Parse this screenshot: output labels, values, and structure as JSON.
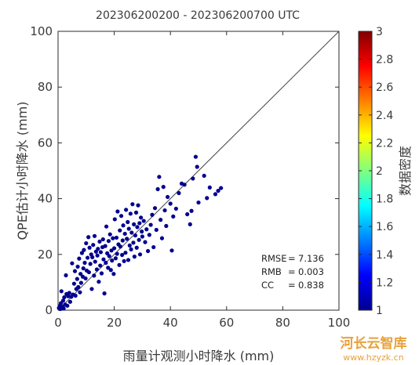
{
  "chart_data": {
    "type": "scatter",
    "title": "202306200200 - 202306200700 UTC",
    "xlabel": "雨量计观测小时降水 (mm)",
    "ylabel": "QPE估计小时降水 (mm)",
    "xlim": [
      0,
      100
    ],
    "ylim": [
      0,
      100
    ],
    "x_ticks": [
      "0",
      "20",
      "40",
      "60",
      "80",
      "100"
    ],
    "y_ticks": [
      "0",
      "20",
      "40",
      "60",
      "80",
      "100"
    ],
    "grid": false,
    "reference_line": "1:1",
    "point_color": "#00008f",
    "stats": [
      {
        "label": "RMSE",
        "value": "7.136"
      },
      {
        "label": "RMB",
        "value": "0.003"
      },
      {
        "label": "CC",
        "value": "0.838"
      }
    ],
    "colorbar": {
      "label": "数据密度",
      "range": [
        1,
        3
      ],
      "ticks": [
        "1",
        "1.2",
        "1.4",
        "1.6",
        "1.8",
        "2",
        "2.2",
        "2.4",
        "2.6",
        "2.8",
        "3"
      ]
    },
    "points": [
      [
        0.3,
        0.8
      ],
      [
        0.6,
        1.5
      ],
      [
        0.8,
        0.4
      ],
      [
        1.0,
        2.5
      ],
      [
        1.2,
        6.8
      ],
      [
        1.5,
        1.2
      ],
      [
        1.8,
        3.4
      ],
      [
        2.0,
        0.6
      ],
      [
        2.2,
        4.6
      ],
      [
        2.5,
        2.0
      ],
      [
        2.8,
        12.5
      ],
      [
        3.0,
        5.8
      ],
      [
        3.3,
        1.6
      ],
      [
        3.6,
        5.0
      ],
      [
        4.0,
        6.2
      ],
      [
        4.3,
        3.0
      ],
      [
        4.7,
        4.8
      ],
      [
        5.0,
        16.8
      ],
      [
        5.3,
        5.6
      ],
      [
        5.7,
        9.5
      ],
      [
        6.0,
        14.0
      ],
      [
        6.2,
        5.2
      ],
      [
        6.5,
        7.6
      ],
      [
        6.8,
        11.2
      ],
      [
        7.0,
        15.6
      ],
      [
        7.2,
        8.3
      ],
      [
        7.5,
        18.5
      ],
      [
        7.8,
        6.4
      ],
      [
        8.0,
        13.0
      ],
      [
        8.2,
        9.8
      ],
      [
        8.5,
        20.5
      ],
      [
        8.8,
        12.0
      ],
      [
        9.0,
        15.0
      ],
      [
        9.2,
        21.6
      ],
      [
        9.5,
        17.0
      ],
      [
        9.8,
        11.4
      ],
      [
        10.0,
        24.0
      ],
      [
        10.2,
        14.2
      ],
      [
        10.5,
        18.8
      ],
      [
        10.8,
        26.2
      ],
      [
        11.0,
        13.6
      ],
      [
        11.2,
        22.4
      ],
      [
        11.5,
        16.6
      ],
      [
        11.8,
        20.0
      ],
      [
        12.0,
        7.6
      ],
      [
        12.2,
        19.0
      ],
      [
        12.5,
        23.4
      ],
      [
        12.8,
        12.4
      ],
      [
        13.0,
        26.6
      ],
      [
        13.2,
        17.4
      ],
      [
        13.5,
        21.0
      ],
      [
        13.8,
        14.6
      ],
      [
        14.0,
        19.6
      ],
      [
        14.2,
        22.0
      ],
      [
        14.5,
        10.2
      ],
      [
        14.8,
        24.6
      ],
      [
        15.0,
        16.0
      ],
      [
        15.2,
        20.8
      ],
      [
        15.5,
        13.2
      ],
      [
        15.8,
        22.6
      ],
      [
        16.0,
        25.4
      ],
      [
        16.2,
        18.2
      ],
      [
        16.5,
        6.0
      ],
      [
        16.8,
        23.0
      ],
      [
        17.0,
        17.0
      ],
      [
        17.2,
        30.0
      ],
      [
        17.5,
        20.4
      ],
      [
        17.8,
        15.2
      ],
      [
        18.0,
        24.8
      ],
      [
        18.2,
        19.4
      ],
      [
        18.5,
        27.2
      ],
      [
        18.8,
        14.4
      ],
      [
        19.0,
        21.4
      ],
      [
        19.2,
        17.8
      ],
      [
        19.5,
        25.8
      ],
      [
        19.8,
        13.0
      ],
      [
        20.0,
        22.2
      ],
      [
        20.2,
        32.6
      ],
      [
        20.5,
        18.6
      ],
      [
        20.8,
        26.0
      ],
      [
        21.0,
        20.2
      ],
      [
        21.2,
        35.4
      ],
      [
        21.5,
        23.6
      ],
      [
        21.8,
        16.2
      ],
      [
        22.0,
        28.6
      ],
      [
        22.2,
        22.8
      ],
      [
        22.5,
        33.8
      ],
      [
        22.8,
        19.8
      ],
      [
        23.0,
        25.0
      ],
      [
        23.2,
        30.4
      ],
      [
        23.5,
        17.6
      ],
      [
        23.8,
        27.4
      ],
      [
        24.0,
        20.6
      ],
      [
        24.2,
        36.0
      ],
      [
        24.5,
        25.6
      ],
      [
        24.8,
        31.6
      ],
      [
        25.0,
        18.0
      ],
      [
        25.2,
        29.2
      ],
      [
        25.5,
        23.2
      ],
      [
        25.8,
        34.6
      ],
      [
        26.0,
        21.8
      ],
      [
        26.2,
        27.8
      ],
      [
        26.5,
        38.0
      ],
      [
        26.8,
        24.2
      ],
      [
        27.0,
        30.8
      ],
      [
        27.2,
        19.2
      ],
      [
        27.5,
        26.8
      ],
      [
        27.8,
        35.0
      ],
      [
        28.0,
        22.4
      ],
      [
        28.2,
        29.8
      ],
      [
        28.5,
        37.6
      ],
      [
        28.8,
        25.2
      ],
      [
        29.0,
        31.2
      ],
      [
        29.2,
        20.0
      ],
      [
        29.5,
        33.2
      ],
      [
        29.8,
        28.2
      ],
      [
        30.0,
        26.4
      ],
      [
        30.5,
        32.0
      ],
      [
        31.0,
        24.4
      ],
      [
        31.5,
        29.0
      ],
      [
        32.0,
        21.2
      ],
      [
        32.5,
        27.0
      ],
      [
        33.0,
        30.6
      ],
      [
        33.5,
        34.2
      ],
      [
        34.0,
        22.6
      ],
      [
        34.5,
        36.6
      ],
      [
        35.0,
        28.8
      ],
      [
        35.5,
        43.4
      ],
      [
        36.0,
        47.8
      ],
      [
        36.5,
        32.4
      ],
      [
        37.0,
        25.8
      ],
      [
        37.5,
        44.2
      ],
      [
        38.0,
        35.8
      ],
      [
        38.5,
        30.2
      ],
      [
        39.0,
        40.6
      ],
      [
        40.0,
        38.2
      ],
      [
        40.5,
        21.4
      ],
      [
        41.0,
        33.6
      ],
      [
        42.0,
        36.4
      ],
      [
        43.0,
        42.0
      ],
      [
        44.0,
        45.4
      ],
      [
        45.0,
        45.0
      ],
      [
        46.0,
        34.4
      ],
      [
        47.0,
        30.8
      ],
      [
        47.5,
        35.6
      ],
      [
        48.0,
        47.2
      ],
      [
        49.0,
        55.0
      ],
      [
        49.5,
        51.4
      ],
      [
        50.0,
        38.6
      ],
      [
        52.0,
        48.2
      ],
      [
        53.0,
        40.2
      ],
      [
        54.0,
        44.0
      ],
      [
        56.0,
        41.6
      ],
      [
        57.0,
        42.8
      ],
      [
        58.0,
        43.8
      ]
    ]
  },
  "watermark": {
    "text": "河长云智库",
    "url": "www.hzyzk.cn"
  }
}
